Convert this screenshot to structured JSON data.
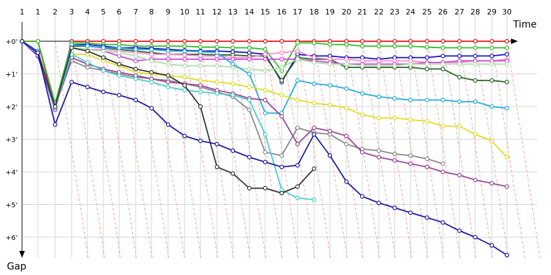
{
  "chart_data": {
    "type": "line",
    "xlabel": "Time",
    "ylabel": "Gap",
    "lap_labels": [
      "1",
      "1",
      "2",
      "3",
      "4",
      "5",
      "6",
      "7",
      "8",
      "9",
      "10",
      "11",
      "12",
      "13",
      "14",
      "15",
      "16",
      "17",
      "18",
      "19",
      "20",
      "21",
      "22",
      "23",
      "24",
      "25",
      "26",
      "27",
      "28",
      "29",
      "30"
    ],
    "y_ticks": [
      "+0'",
      "+1'",
      "+2'",
      "+3'",
      "+4'",
      "+5'",
      "+6'"
    ],
    "grid": true,
    "series": [
      {
        "color": "#ee1111",
        "values": [
          0.0,
          0.0,
          2.05,
          0.0,
          0.0,
          0.0,
          0.0,
          0.0,
          0.0,
          0.0,
          0.0,
          0.0,
          0.0,
          0.0,
          0.0,
          0.0,
          0.0,
          0.0,
          0.0,
          0.0,
          0.0,
          0.0,
          0.0,
          0.0,
          0.0,
          0.0,
          0.0,
          0.0,
          0.0,
          0.0,
          0.0
        ]
      },
      {
        "color": "#33bb22",
        "values": [
          0.0,
          0.0,
          1.9,
          0.05,
          0.05,
          0.1,
          0.1,
          0.15,
          0.15,
          0.15,
          0.15,
          0.18,
          0.18,
          0.2,
          0.2,
          0.25,
          0.9,
          0.05,
          0.05,
          0.1,
          0.1,
          0.15,
          0.15,
          0.15,
          0.15,
          0.18,
          0.2,
          0.2,
          0.2,
          0.2,
          0.2
        ]
      },
      {
        "color": "#1111bb",
        "values": [
          0.0,
          0.45,
          2.1,
          0.1,
          0.1,
          0.15,
          0.2,
          0.2,
          0.22,
          0.25,
          0.28,
          0.3,
          0.3,
          0.32,
          0.35,
          0.4,
          1.25,
          0.4,
          0.45,
          0.45,
          0.5,
          0.5,
          0.55,
          0.5,
          0.5,
          0.5,
          0.45,
          0.45,
          0.45,
          0.45,
          0.4
        ]
      },
      {
        "color": "#226622",
        "values": [
          0.0,
          0.3,
          2.05,
          0.15,
          0.15,
          0.2,
          0.25,
          0.3,
          0.35,
          0.4,
          0.4,
          0.4,
          0.42,
          0.42,
          0.45,
          0.45,
          1.2,
          0.5,
          0.55,
          0.55,
          0.8,
          0.8,
          0.8,
          0.8,
          0.8,
          0.85,
          0.85,
          1.1,
          1.2,
          1.2,
          1.25
        ]
      },
      {
        "color": "#ff88cc",
        "values": [
          0.0,
          0.4,
          2.05,
          0.2,
          0.25,
          0.25,
          0.3,
          0.35,
          0.4,
          0.4,
          0.42,
          0.45,
          0.45,
          0.5,
          0.5,
          0.4,
          0.35,
          0.3,
          0.5,
          0.55,
          0.55,
          0.6,
          0.6,
          0.6,
          0.6,
          0.65,
          0.65,
          0.65,
          0.6,
          0.6,
          0.55
        ]
      },
      {
        "color": "#cc44dd",
        "values": [
          0.0,
          0.3,
          2.1,
          0.2,
          0.25,
          0.3,
          0.45,
          0.6,
          0.55,
          0.55,
          0.55,
          0.55,
          0.55,
          0.55,
          0.55,
          0.55,
          0.55,
          0.55,
          0.6,
          0.65,
          0.7,
          0.7,
          0.7,
          0.7,
          0.7,
          0.65,
          0.65,
          0.6,
          0.6,
          0.6,
          0.6
        ]
      },
      {
        "color": "#aaddaa",
        "values": [
          0.0,
          0.35,
          2.0,
          0.2,
          0.25,
          0.3,
          0.35,
          0.45,
          0.6,
          0.7,
          0.75,
          0.75,
          0.75,
          0.8,
          0.85,
          0.9,
          0.8,
          0.55,
          0.65,
          0.7,
          0.7,
          0.75,
          0.75,
          0.75,
          0.7,
          0.7,
          0.7,
          0.7,
          0.7,
          0.7,
          0.7
        ]
      },
      {
        "color": "#22aadd",
        "values": [
          0.0,
          0.3,
          2.05,
          0.1,
          0.15,
          0.2,
          0.2,
          0.25,
          0.25,
          0.3,
          0.3,
          0.32,
          0.35,
          0.7,
          1.0,
          2.2,
          2.2,
          1.2,
          1.3,
          1.35,
          1.45,
          1.6,
          1.7,
          1.75,
          1.8,
          1.8,
          1.8,
          1.85,
          1.85,
          2.0,
          2.05
        ]
      },
      {
        "color": "#dddd22",
        "values": [
          0.0,
          0.35,
          2.0,
          0.4,
          0.4,
          0.6,
          0.75,
          0.95,
          1.0,
          1.05,
          1.1,
          1.2,
          1.25,
          1.3,
          1.4,
          1.5,
          1.65,
          1.8,
          1.9,
          1.95,
          2.05,
          2.25,
          2.35,
          2.35,
          2.4,
          2.45,
          2.6,
          2.6,
          2.85,
          3.05,
          3.55
        ]
      },
      {
        "color": "#888888",
        "values": [
          0.0,
          0.35,
          2.0,
          0.6,
          0.8,
          0.9,
          1.0,
          1.1,
          1.15,
          1.2,
          1.3,
          1.4,
          1.55,
          1.7,
          2.1,
          3.4,
          3.5,
          2.65,
          2.8,
          2.85,
          3.15,
          3.3,
          3.35,
          3.45,
          3.5,
          3.6,
          3.75,
          null,
          null,
          null,
          null
        ]
      },
      {
        "color": "#994499",
        "values": [
          0.0,
          0.35,
          2.0,
          0.5,
          0.7,
          0.85,
          0.95,
          1.05,
          1.15,
          1.25,
          1.3,
          1.35,
          1.5,
          1.6,
          1.75,
          1.8,
          2.3,
          3.15,
          2.65,
          2.75,
          2.9,
          3.4,
          3.55,
          3.65,
          3.75,
          3.85,
          4.0,
          4.1,
          4.25,
          4.35,
          4.45
        ]
      },
      {
        "color": "#44cccc",
        "values": [
          0.0,
          0.35,
          2.0,
          0.4,
          0.65,
          0.9,
          1.05,
          1.15,
          1.25,
          1.4,
          1.5,
          1.55,
          1.6,
          1.65,
          1.8,
          2.85,
          4.55,
          4.8,
          4.85,
          null,
          null,
          null,
          null,
          null,
          null,
          null,
          null,
          null,
          null,
          null,
          null
        ]
      },
      {
        "color": "#333333",
        "values": [
          0.0,
          0.35,
          2.0,
          0.2,
          0.3,
          0.5,
          0.7,
          0.85,
          0.95,
          1.05,
          1.35,
          2.0,
          3.85,
          4.05,
          4.5,
          4.5,
          4.65,
          4.45,
          3.9,
          null,
          null,
          null,
          null,
          null,
          null,
          null,
          null,
          null,
          null,
          null,
          null
        ]
      },
      {
        "color": "#1a1aa0",
        "values": [
          0.0,
          0.35,
          2.55,
          1.25,
          1.4,
          1.55,
          1.65,
          1.8,
          2.05,
          2.55,
          2.9,
          3.05,
          3.15,
          3.35,
          3.55,
          3.7,
          3.85,
          3.8,
          2.85,
          3.5,
          4.3,
          4.75,
          4.95,
          5.1,
          5.25,
          5.4,
          5.55,
          5.8,
          6.0,
          6.25,
          6.55
        ]
      }
    ]
  }
}
